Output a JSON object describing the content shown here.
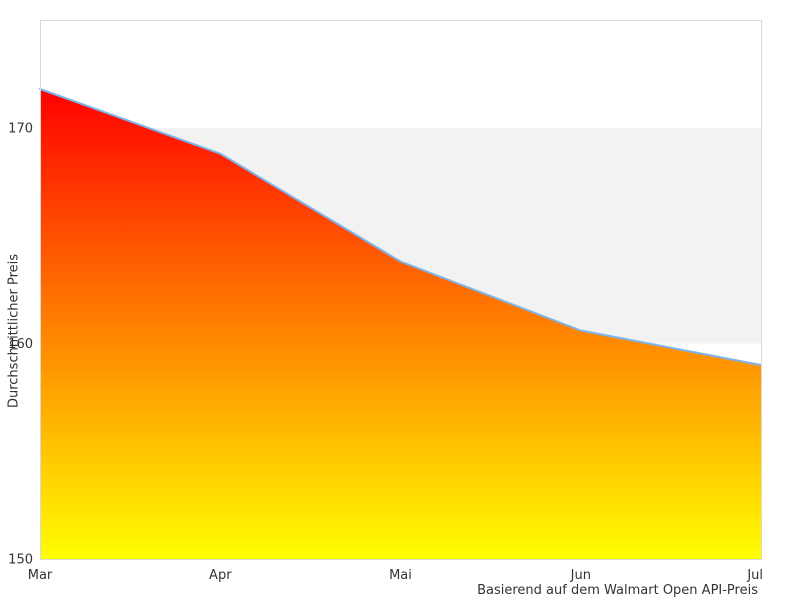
{
  "chart_data": {
    "type": "area",
    "categories": [
      "Mar",
      "Apr",
      "Mai",
      "Jun",
      "Jul"
    ],
    "values": [
      171.8,
      168.8,
      163.8,
      160.6,
      159.0
    ],
    "title": "",
    "xlabel": "",
    "ylabel": "Durchschnittlicher Preis",
    "caption": "Basierend auf dem Walmart Open API-Preis",
    "yticks": [
      150,
      160,
      170
    ],
    "ylim": [
      150,
      175
    ],
    "grid": "alternate horizontal band between 160 and 170",
    "legend": "none",
    "colors": {
      "area_gradient_top": "#ff0000",
      "area_gradient_bottom": "#ffff00",
      "line": "#7cb5ec",
      "band": "#f2f2f2",
      "plot_border": "#d9d9d9",
      "text": "#333333",
      "background": "#ffffff"
    }
  }
}
